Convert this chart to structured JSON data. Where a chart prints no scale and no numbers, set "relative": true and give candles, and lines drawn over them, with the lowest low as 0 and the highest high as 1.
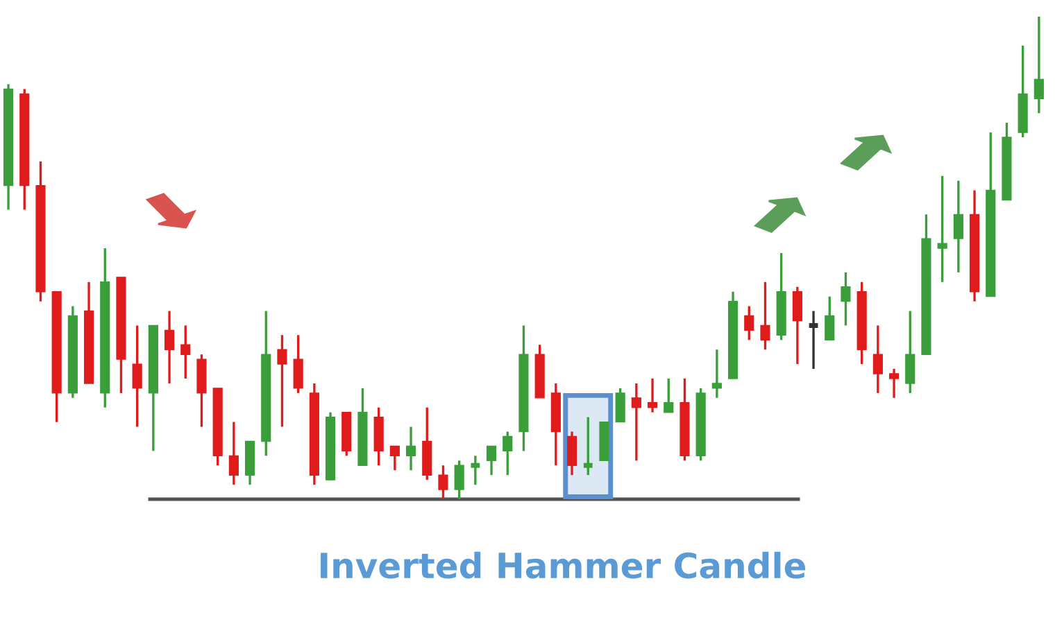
{
  "chart_data": {
    "type": "candlestick",
    "title": "Inverted Hammer Candle",
    "relative": true,
    "categories": [
      null,
      null,
      null,
      null,
      null,
      null,
      null,
      null,
      null,
      null,
      null,
      null,
      null,
      null,
      null,
      null,
      null,
      null,
      null,
      null,
      null,
      null,
      null,
      null,
      null,
      null,
      null,
      null,
      null,
      null,
      null,
      null,
      null,
      null,
      null,
      null,
      null,
      null,
      null,
      null,
      null,
      null,
      null,
      null,
      null,
      null,
      null,
      null,
      null,
      null,
      null,
      null,
      null,
      null,
      null,
      null,
      null,
      null,
      null,
      null,
      null,
      null,
      null,
      null,
      null
    ],
    "ohlc": [
      [
        0.65,
        0.86,
        0.6,
        0.85
      ],
      [
        0.84,
        0.85,
        0.6,
        0.65
      ],
      [
        0.65,
        0.7,
        0.41,
        0.43
      ],
      [
        0.43,
        0.43,
        0.16,
        0.22
      ],
      [
        0.22,
        0.4,
        0.21,
        0.38
      ],
      [
        0.39,
        0.45,
        0.24,
        0.24
      ],
      [
        0.22,
        0.52,
        0.19,
        0.45
      ],
      [
        0.46,
        0.46,
        0.22,
        0.29
      ],
      [
        0.28,
        0.36,
        0.15,
        0.23
      ],
      [
        0.22,
        0.36,
        0.1,
        0.36
      ],
      [
        0.35,
        0.39,
        0.24,
        0.31
      ],
      [
        0.32,
        0.36,
        0.25,
        0.3
      ],
      [
        0.29,
        0.3,
        0.15,
        0.22
      ],
      [
        0.23,
        0.23,
        0.07,
        0.09
      ],
      [
        0.09,
        0.16,
        0.03,
        0.05
      ],
      [
        0.05,
        0.12,
        0.03,
        0.12
      ],
      [
        0.12,
        0.39,
        0.09,
        0.3
      ],
      [
        0.31,
        0.34,
        0.15,
        0.28
      ],
      [
        0.29,
        0.34,
        0.22,
        0.23
      ],
      [
        0.22,
        0.24,
        0.03,
        0.05
      ],
      [
        0.04,
        0.18,
        0.04,
        0.17
      ],
      [
        0.18,
        0.18,
        0.09,
        0.1
      ],
      [
        0.07,
        0.23,
        0.07,
        0.18
      ],
      [
        0.17,
        0.19,
        0.07,
        0.1
      ],
      [
        0.11,
        0.11,
        0.06,
        0.09
      ],
      [
        0.09,
        0.15,
        0.06,
        0.11
      ],
      [
        0.12,
        0.19,
        0.04,
        0.05
      ],
      [
        0.05,
        0.07,
        0.0,
        0.02
      ],
      [
        0.02,
        0.08,
        0.0,
        0.07
      ],
      [
        0.07,
        0.09,
        0.03,
        0.07
      ],
      [
        0.08,
        0.11,
        0.05,
        0.11
      ],
      [
        0.1,
        0.14,
        0.05,
        0.13
      ],
      [
        0.14,
        0.36,
        0.1,
        0.3
      ],
      [
        0.3,
        0.32,
        0.21,
        0.21
      ],
      [
        0.22,
        0.24,
        0.07,
        0.14
      ],
      [
        0.13,
        0.14,
        0.05,
        0.07
      ],
      [
        0.07,
        0.17,
        0.05,
        0.07
      ],
      [
        0.08,
        0.16,
        0.08,
        0.16
      ],
      [
        0.16,
        0.23,
        0.16,
        0.22
      ],
      [
        0.21,
        0.24,
        0.08,
        0.19
      ],
      [
        0.2,
        0.25,
        0.18,
        0.19
      ],
      [
        0.18,
        0.25,
        0.18,
        0.2
      ],
      [
        0.2,
        0.25,
        0.08,
        0.09
      ],
      [
        0.09,
        0.23,
        0.08,
        0.22
      ],
      [
        0.23,
        0.31,
        0.21,
        0.24
      ],
      [
        0.25,
        0.43,
        0.25,
        0.41
      ],
      [
        0.38,
        0.4,
        0.33,
        0.35
      ],
      [
        0.36,
        0.45,
        0.31,
        0.33
      ],
      [
        0.34,
        0.51,
        0.33,
        0.43
      ],
      [
        0.43,
        0.44,
        0.28,
        0.37
      ],
      [
        0.36,
        0.39,
        0.27,
        0.36
      ],
      [
        0.33,
        0.42,
        0.33,
        0.38
      ],
      [
        0.41,
        0.47,
        0.36,
        0.44
      ],
      [
        0.43,
        0.45,
        0.28,
        0.31
      ],
      [
        0.3,
        0.36,
        0.22,
        0.26
      ],
      [
        0.26,
        0.27,
        0.21,
        0.25
      ],
      [
        0.24,
        0.39,
        0.22,
        0.3
      ],
      [
        0.3,
        0.59,
        0.3,
        0.54
      ],
      [
        0.52,
        0.67,
        0.45,
        0.53
      ],
      [
        0.54,
        0.66,
        0.47,
        0.59
      ],
      [
        0.59,
        0.64,
        0.41,
        0.43
      ],
      [
        0.42,
        0.76,
        0.42,
        0.64
      ],
      [
        0.62,
        0.78,
        0.62,
        0.75
      ],
      [
        0.76,
        0.94,
        0.75,
        0.84
      ],
      [
        0.83,
        1.0,
        0.8,
        0.87
      ]
    ],
    "colors": [
      "#3a9e3a",
      "#e01b1b",
      "#e01b1b",
      "#e01b1b",
      "#3a9e3a",
      "#e01b1b",
      "#3a9e3a",
      "#e01b1b",
      "#e01b1b",
      "#3a9e3a",
      "#e01b1b",
      "#e01b1b",
      "#e01b1b",
      "#e01b1b",
      "#e01b1b",
      "#3a9e3a",
      "#3a9e3a",
      "#e01b1b",
      "#e01b1b",
      "#e01b1b",
      "#3a9e3a",
      "#e01b1b",
      "#3a9e3a",
      "#e01b1b",
      "#e01b1b",
      "#3a9e3a",
      "#e01b1b",
      "#e01b1b",
      "#3a9e3a",
      "#3a9e3a",
      "#3a9e3a",
      "#3a9e3a",
      "#3a9e3a",
      "#e01b1b",
      "#e01b1b",
      "#e01b1b",
      "#3a9e3a",
      "#3a9e3a",
      "#3a9e3a",
      "#e01b1b",
      "#e01b1b",
      "#3a9e3a",
      "#e01b1b",
      "#3a9e3a",
      "#3a9e3a",
      "#3a9e3a",
      "#e01b1b",
      "#e01b1b",
      "#3a9e3a",
      "#e01b1b",
      "#333333",
      "#3a9e3a",
      "#3a9e3a",
      "#e01b1b",
      "#e01b1b",
      "#e01b1b",
      "#3a9e3a",
      "#3a9e3a",
      "#3a9e3a",
      "#3a9e3a",
      "#e01b1b",
      "#3a9e3a",
      "#3a9e3a",
      "#3a9e3a",
      "#3a9e3a"
    ],
    "ref_lines": [
      {
        "axis": "y",
        "value": 0,
        "color": "#555555"
      }
    ]
  }
}
